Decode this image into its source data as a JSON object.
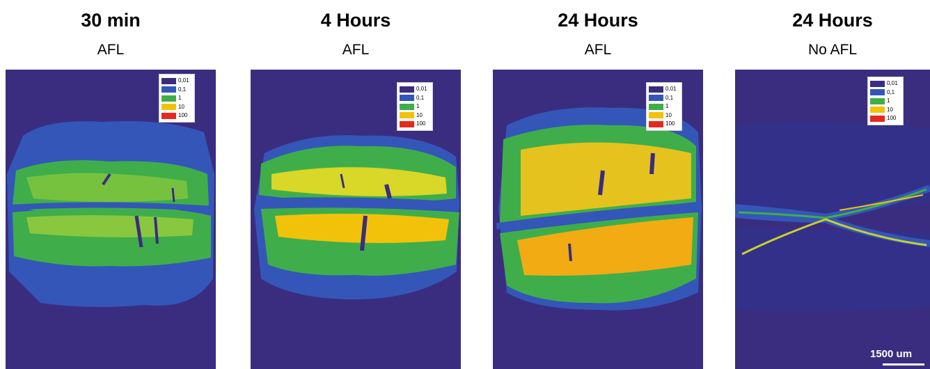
{
  "panels": [
    {
      "title": "30 min",
      "subtitle": "AFL"
    },
    {
      "title": "4 Hours",
      "subtitle": "AFL"
    },
    {
      "title": "24 Hours",
      "subtitle": "AFL"
    },
    {
      "title": "24 Hours",
      "subtitle": "No AFL"
    }
  ],
  "legend": {
    "entries": [
      {
        "label": "0,01",
        "color": "#3a2d80"
      },
      {
        "label": "0,1",
        "color": "#3456b8"
      },
      {
        "label": "1",
        "color": "#3fae4a"
      },
      {
        "label": "10",
        "color": "#f2c20a"
      },
      {
        "label": "100",
        "color": "#e8281e"
      }
    ]
  },
  "scale_bar": {
    "label": "1500 um"
  },
  "colors": {
    "background": "#3a2d80",
    "blue": "#3456b8",
    "green": "#3fae4a",
    "yellow": "#f2c20a",
    "red": "#e8281e"
  }
}
